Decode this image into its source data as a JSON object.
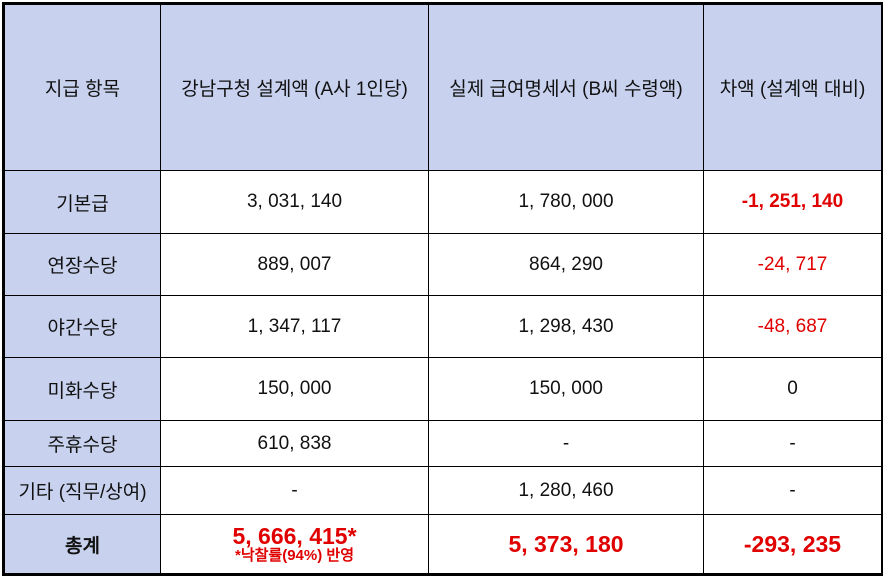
{
  "table": {
    "header": [
      "지급 항목",
      "강남구청 설계액 (A사 1인당)",
      "실제 급여명세서 (B씨 수령액)",
      "차액 (설계액 대비)"
    ],
    "rows": [
      [
        "기본급",
        "3, 031, 140",
        "1, 780, 000",
        "-1, 251, 140"
      ],
      [
        "연장수당",
        "889, 007",
        "864, 290",
        "-24, 717"
      ],
      [
        "야간수당",
        "1, 347, 117",
        "1, 298, 430",
        "-48, 687"
      ],
      [
        "미화수당",
        "150, 000",
        "150, 000",
        "0"
      ],
      [
        "주휴수당",
        "610, 838",
        "-",
        "-"
      ],
      [
        "기타 (직무/상여)",
        "-",
        "1, 280, 460",
        "-"
      ],
      [
        "총계",
        "5, 666, 415*",
        "5, 373, 180",
        "-293, 235"
      ]
    ],
    "note": "*낙찰률(94%) 반영"
  }
}
